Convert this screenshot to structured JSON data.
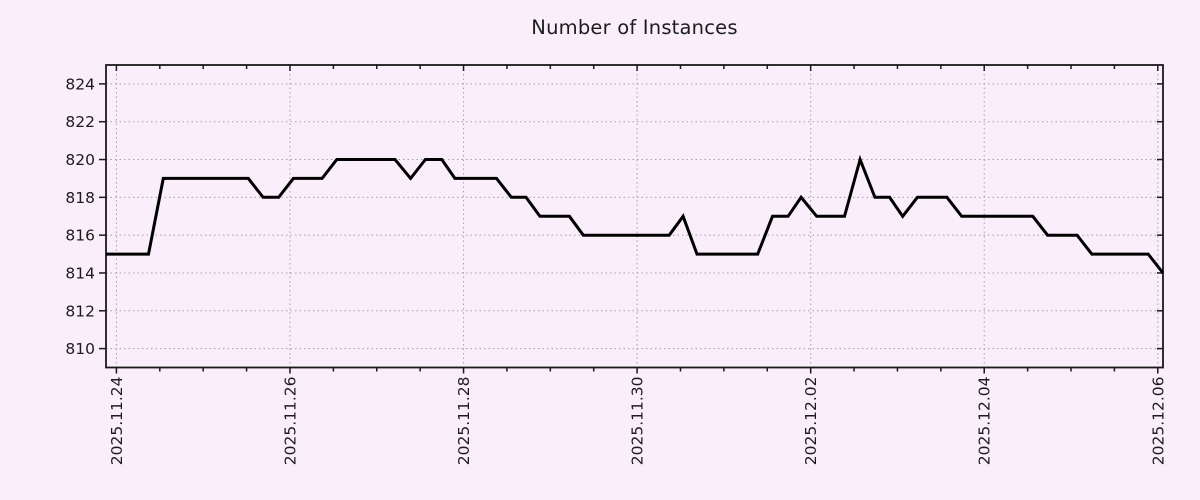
{
  "title": "Number of Instances",
  "colors": {
    "background": "#f9eef9",
    "line": "#000000",
    "grid": "#a3a3a3",
    "axis": "#1a1a1a",
    "text": "#1c1c1c"
  },
  "chart_data": {
    "type": "line",
    "title": "Number of Instances",
    "xlabel": "",
    "ylabel": "",
    "grid": true,
    "legend": null,
    "x_axis": {
      "unit": "days since 2025-11-24",
      "range_days": [
        -0.12,
        12.06
      ],
      "major_tick_days": [
        0,
        2,
        4,
        6,
        8,
        10,
        12
      ],
      "major_tick_labels": [
        "2025.11.24",
        "2025.11.26",
        "2025.11.28",
        "2025.11.30",
        "2025.12.02",
        "2025.12.04",
        "2025.12.06"
      ],
      "minor_tick_step_days": 0.5,
      "label_rotation_deg": -90
    },
    "y_axis": {
      "range": [
        809,
        825
      ],
      "tick_values": [
        810,
        812,
        814,
        816,
        818,
        820,
        822,
        824
      ]
    },
    "series": [
      {
        "name": "instances",
        "color": "#000000",
        "line_width": 3,
        "points": [
          [
            -0.12,
            815
          ],
          [
            0.37,
            815
          ],
          [
            0.54,
            819
          ],
          [
            1.52,
            819
          ],
          [
            1.69,
            818
          ],
          [
            1.87,
            818
          ],
          [
            2.04,
            819
          ],
          [
            2.37,
            819
          ],
          [
            2.54,
            820
          ],
          [
            3.21,
            820
          ],
          [
            3.39,
            819
          ],
          [
            3.56,
            820
          ],
          [
            3.75,
            820
          ],
          [
            3.9,
            819
          ],
          [
            4.38,
            819
          ],
          [
            4.55,
            818
          ],
          [
            4.72,
            818
          ],
          [
            4.88,
            817
          ],
          [
            5.22,
            817
          ],
          [
            5.38,
            816
          ],
          [
            6.37,
            816
          ],
          [
            6.53,
            817
          ],
          [
            6.69,
            815
          ],
          [
            7.39,
            815
          ],
          [
            7.56,
            817
          ],
          [
            7.74,
            817
          ],
          [
            7.89,
            818
          ],
          [
            8.07,
            817
          ],
          [
            8.39,
            817
          ],
          [
            8.57,
            820
          ],
          [
            8.74,
            818
          ],
          [
            8.91,
            818
          ],
          [
            9.06,
            817
          ],
          [
            9.23,
            818
          ],
          [
            9.57,
            818
          ],
          [
            9.74,
            817
          ],
          [
            10.56,
            817
          ],
          [
            10.73,
            816
          ],
          [
            11.07,
            816
          ],
          [
            11.24,
            815
          ],
          [
            11.89,
            815
          ],
          [
            12.06,
            814
          ]
        ]
      }
    ]
  }
}
